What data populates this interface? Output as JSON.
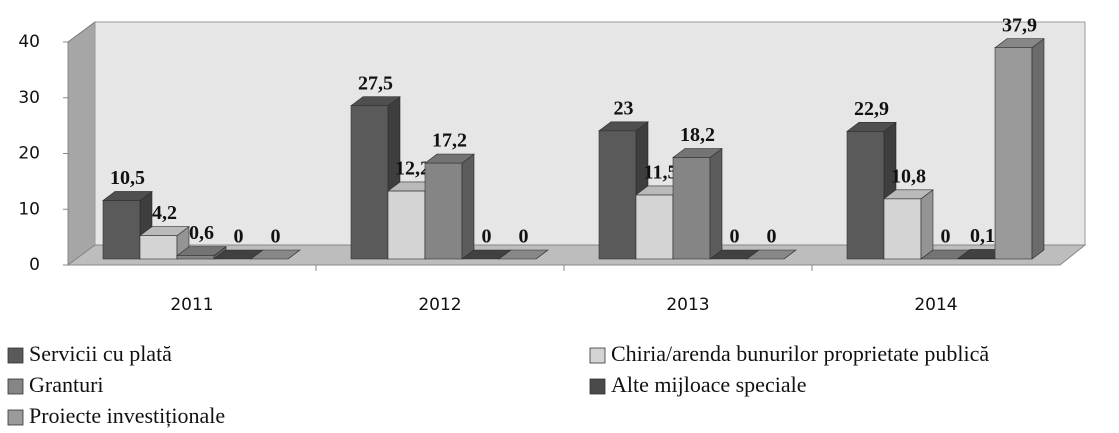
{
  "chart_data": {
    "type": "bar3d",
    "categories": [
      "2011",
      "2012",
      "2013",
      "2014"
    ],
    "series": [
      {
        "name": "Servicii cu plată",
        "color": "#5a5a5a",
        "values": [
          10.5,
          27.5,
          23,
          22.9
        ],
        "value_labels": [
          "10,5",
          "27,5",
          "23",
          "22,9"
        ]
      },
      {
        "name": "Chiria/arenda bunurilor proprietate publică",
        "color": "#d4d4d4",
        "values": [
          4.2,
          12.2,
          11.5,
          10.8
        ],
        "value_labels": [
          "4,2",
          "12,2",
          "11,5",
          "10,8"
        ]
      },
      {
        "name": "Granturi",
        "color": "#858585",
        "values": [
          0.6,
          17.2,
          18.2,
          0
        ],
        "value_labels": [
          "0,6",
          "17,2",
          "18,2",
          "0"
        ]
      },
      {
        "name": "Alte mijloace speciale",
        "color": "#4a4a4a",
        "values": [
          0,
          0,
          0,
          0.1
        ],
        "value_labels": [
          "0",
          "0",
          "0",
          "0,1"
        ]
      },
      {
        "name": "Proiecte investiționale",
        "color": "#9a9a9a",
        "values": [
          0,
          0,
          0,
          37.9
        ],
        "value_labels": [
          "0",
          "0",
          "0",
          "37,9"
        ]
      }
    ],
    "ylim": [
      0,
      40
    ],
    "yticks": [
      0,
      10,
      20,
      30,
      40
    ],
    "grid": false
  }
}
